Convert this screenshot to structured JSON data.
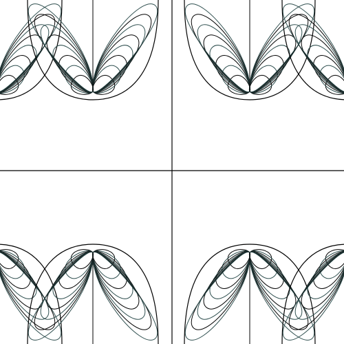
{
  "figure": {
    "background_color": "#ffffff",
    "line_colors": [
      "#000000",
      "#2f4f4f"
    ],
    "description_free": true,
    "quadrants": [
      {
        "id": "top-left",
        "shape": "fan-of-loops",
        "orientation": "opening-up"
      },
      {
        "id": "top-right",
        "shape": "fan-of-loops",
        "orientation": "opening-up"
      },
      {
        "id": "bottom-left",
        "shape": "fan-of-loops",
        "orientation": "opening-down"
      },
      {
        "id": "bottom-right",
        "shape": "fan-of-loops",
        "orientation": "opening-down"
      }
    ],
    "loops_per_side": 8
  }
}
